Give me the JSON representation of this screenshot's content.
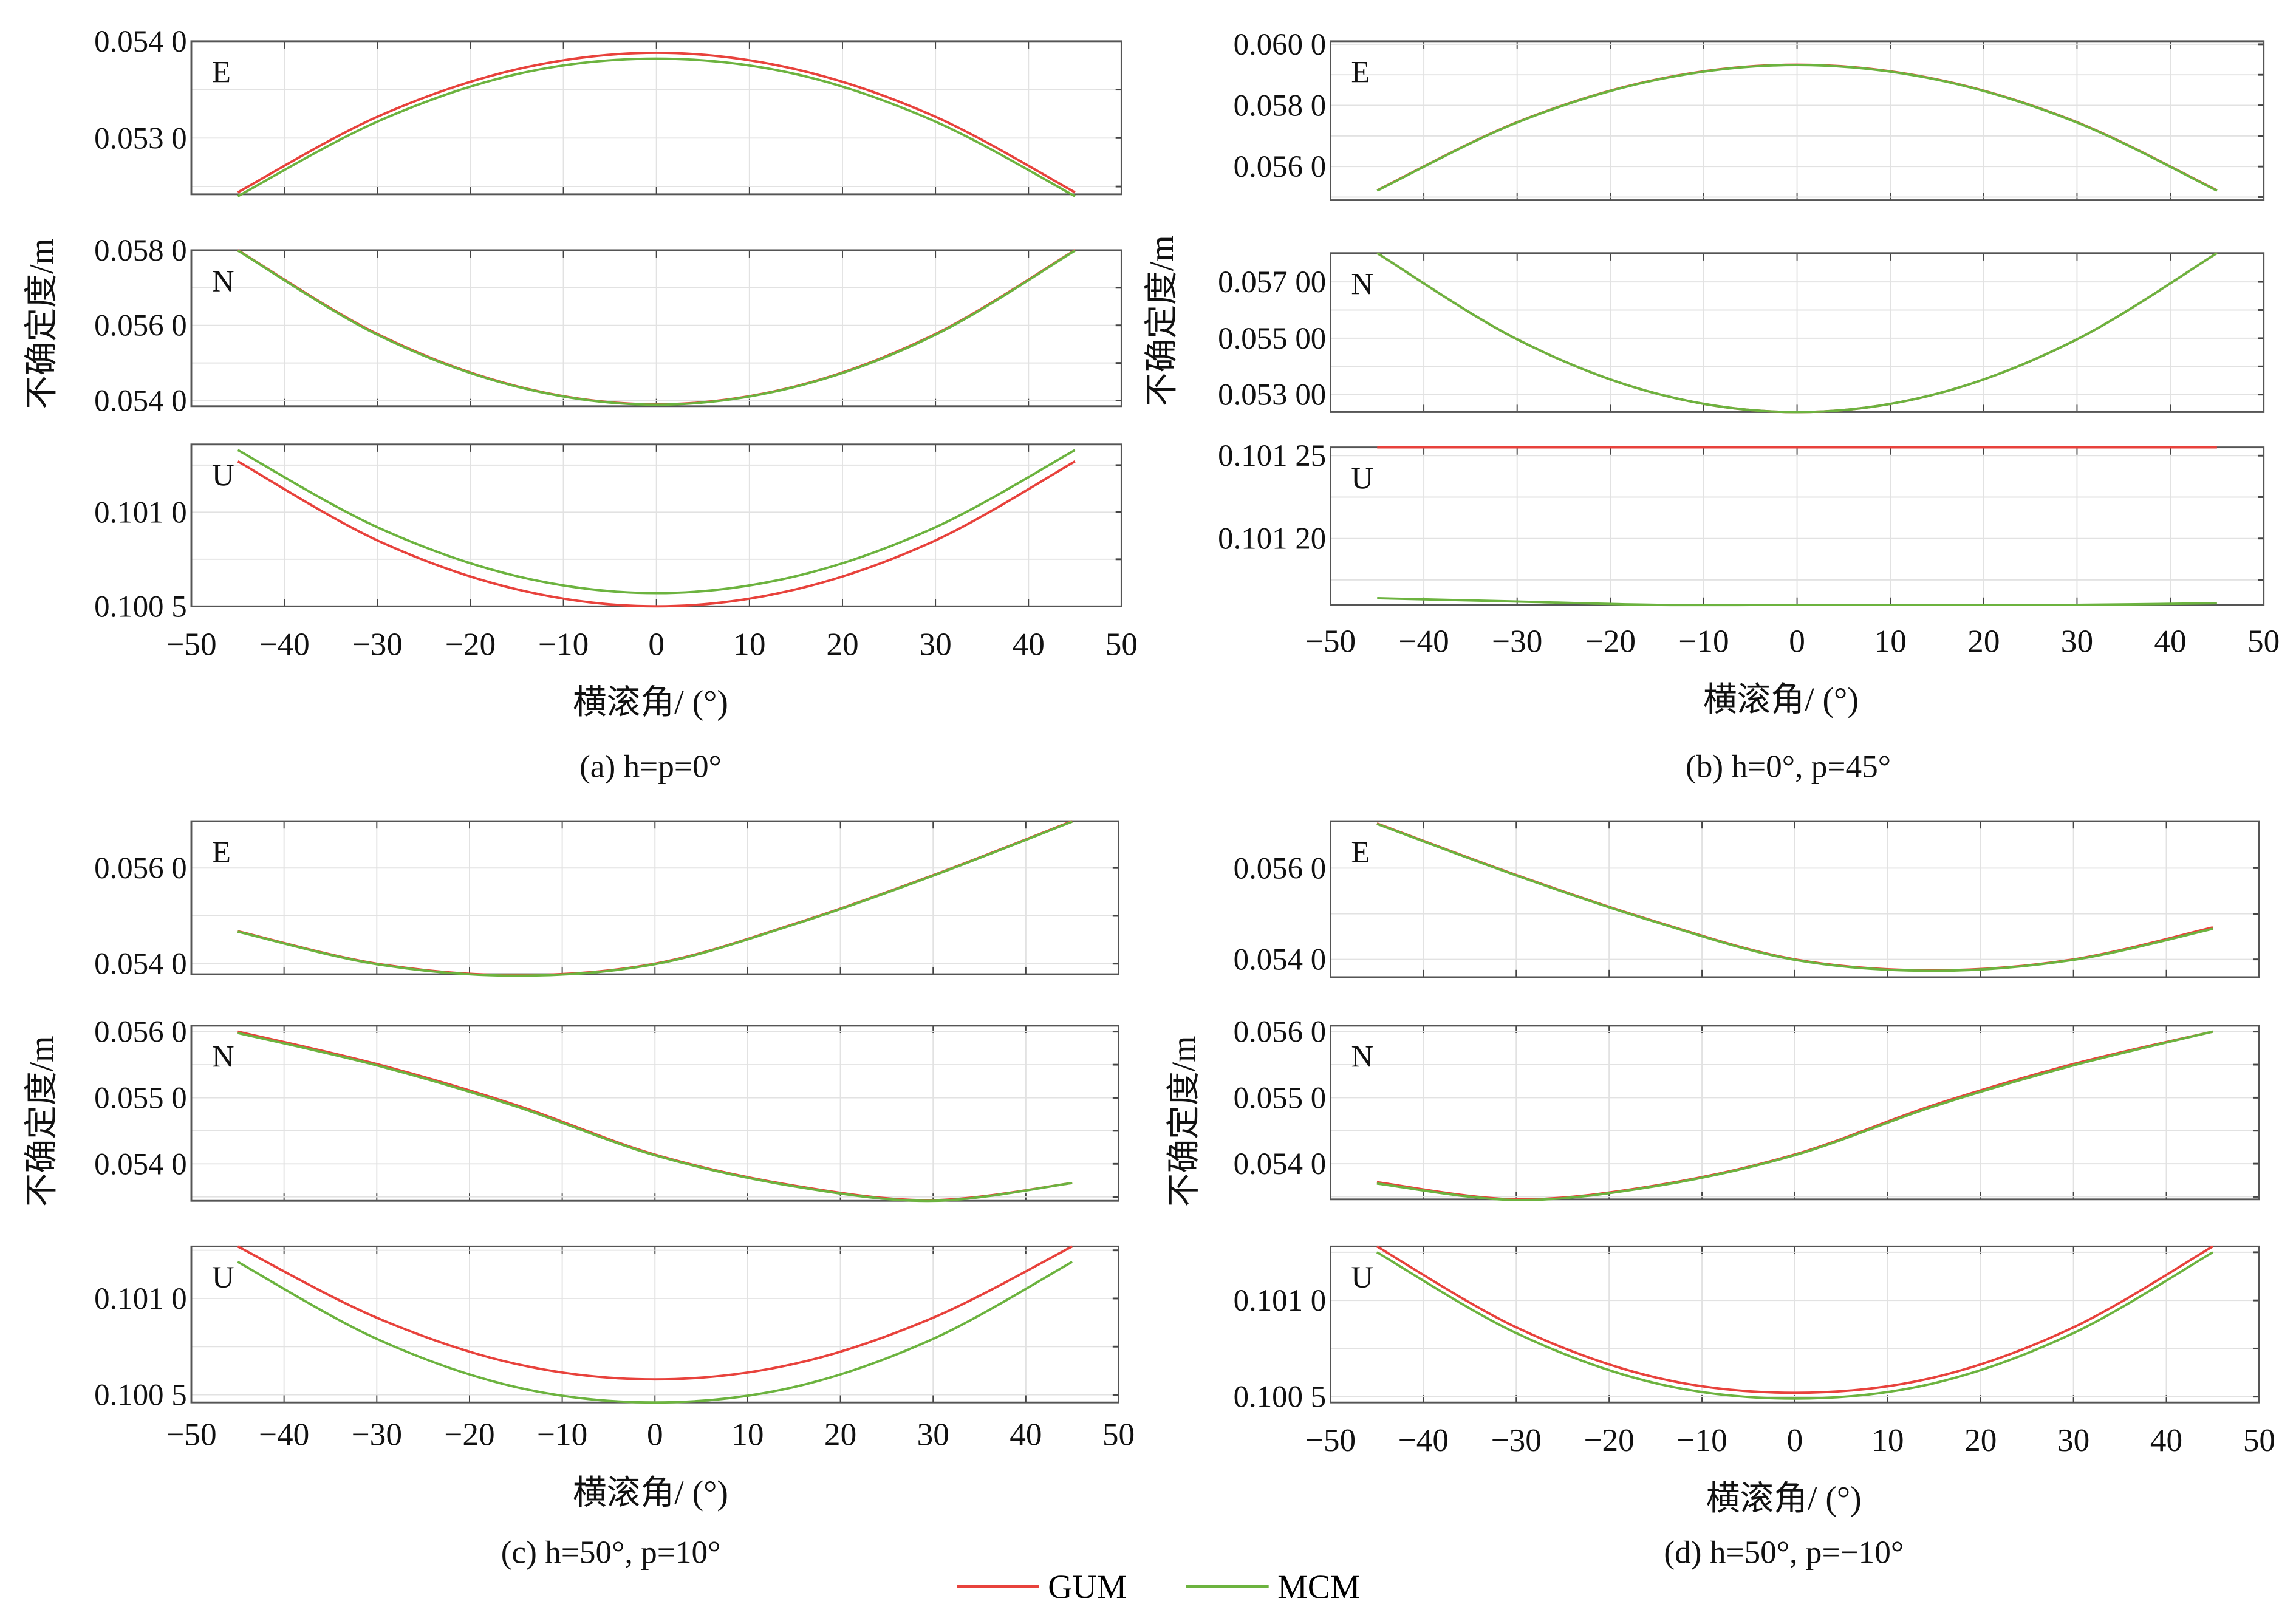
{
  "legend": [
    {
      "name": "GUM",
      "color": "#e8423c"
    },
    {
      "name": "MCM",
      "color": "#6cb33f"
    }
  ],
  "chart_data": [
    {
      "type": "line",
      "caption": "(a) h=p=0°",
      "xlabel": "横滚角/ (°)",
      "ylabel": "不确定度/m",
      "xlim": [
        -50,
        50
      ],
      "xticks": [
        "−50",
        "−40",
        "−30",
        "−20",
        "−10",
        "0",
        "10",
        "20",
        "30",
        "40",
        "50"
      ],
      "x": [
        -45,
        -30,
        -15,
        0,
        15,
        30,
        45
      ],
      "subplots": [
        {
          "label": "E",
          "ylim": [
            0.05242,
            0.054
          ],
          "yticks": [
            {
              "v": 0.054,
              "t": "0.054 0"
            },
            {
              "v": 0.053,
              "t": "0.053 0"
            }
          ],
          "series": [
            {
              "name": "GUM",
              "values": [
                0.05244,
                0.05322,
                0.05371,
                0.05388,
                0.05371,
                0.05322,
                0.05244
              ]
            },
            {
              "name": "MCM",
              "values": [
                0.0524,
                0.05317,
                0.05366,
                0.05382,
                0.05366,
                0.05317,
                0.0524
              ]
            }
          ]
        },
        {
          "label": "N",
          "ylim": [
            0.05385,
            0.058
          ],
          "yticks": [
            {
              "v": 0.058,
              "t": "0.058 0"
            },
            {
              "v": 0.056,
              "t": "0.056 0"
            },
            {
              "v": 0.054,
              "t": "0.054 0"
            }
          ],
          "series": [
            {
              "name": "GUM",
              "values": [
                0.058,
                0.05577,
                0.05438,
                0.0539,
                0.05438,
                0.05577,
                0.058
              ]
            },
            {
              "name": "MCM",
              "values": [
                0.05799,
                0.05575,
                0.05437,
                0.05389,
                0.05437,
                0.05575,
                0.05799
              ]
            }
          ]
        },
        {
          "label": "U",
          "ylim": [
            0.1005,
            0.10136
          ],
          "yticks": [
            {
              "v": 0.101,
              "t": "0.101 0"
            },
            {
              "v": 0.1005,
              "t": "0.100 5"
            }
          ],
          "series": [
            {
              "name": "GUM",
              "values": [
                0.10127,
                0.10085,
                0.10059,
                0.1005,
                0.10059,
                0.10085,
                0.10127
              ]
            },
            {
              "name": "MCM",
              "values": [
                0.10133,
                0.10092,
                0.10066,
                0.10057,
                0.10066,
                0.10092,
                0.10133
              ]
            }
          ]
        }
      ]
    },
    {
      "type": "line",
      "caption": "(b) h=0°, p=45°",
      "xlabel": "横滚角/ (°)",
      "ylabel": "不确定度/m",
      "xlim": [
        -50,
        50
      ],
      "xticks": [
        "−50",
        "−40",
        "−30",
        "−20",
        "−10",
        "0",
        "10",
        "20",
        "30",
        "40",
        "50"
      ],
      "x": [
        -45,
        -30,
        -15,
        0,
        15,
        30,
        45
      ],
      "subplots": [
        {
          "label": "E",
          "ylim": [
            0.0549,
            0.0601
          ],
          "yticks": [
            {
              "v": 0.06,
              "t": "0.060 0"
            },
            {
              "v": 0.058,
              "t": "0.058 0"
            },
            {
              "v": 0.056,
              "t": "0.056 0"
            }
          ],
          "series": [
            {
              "name": "GUM",
              "values": [
                0.05522,
                0.05745,
                0.05885,
                0.05933,
                0.05885,
                0.05745,
                0.05522
              ]
            },
            {
              "name": "MCM",
              "values": [
                0.05521,
                0.05744,
                0.05884,
                0.05932,
                0.05884,
                0.05744,
                0.05521
              ]
            }
          ]
        },
        {
          "label": "N",
          "ylim": [
            0.05238,
            0.05802
          ],
          "yticks": [
            {
              "v": 0.057,
              "t": "0.057 00"
            },
            {
              "v": 0.055,
              "t": "0.055 00"
            },
            {
              "v": 0.053,
              "t": "0.053 00"
            }
          ],
          "series": [
            {
              "name": "GUM",
              "values": [
                0.05802,
                0.05496,
                0.05303,
                0.05238,
                0.05303,
                0.05496,
                0.05802
              ]
            },
            {
              "name": "MCM",
              "values": [
                0.05802,
                0.05496,
                0.05303,
                0.05238,
                0.05303,
                0.05496,
                0.05802
              ]
            }
          ]
        },
        {
          "label": "U",
          "ylim": [
            0.10116,
            0.101255
          ],
          "yticks": [
            {
              "v": 0.10125,
              "t": "0.101 25"
            },
            {
              "v": 0.1012,
              "t": "0.101 20"
            }
          ],
          "series": [
            {
              "name": "GUM",
              "values": [
                0.101255,
                0.101255,
                0.101255,
                0.101255,
                0.101255,
                0.101255,
                0.101255
              ]
            },
            {
              "name": "MCM",
              "values": [
                0.101164,
                0.101162,
                0.10116,
                0.10116,
                0.10116,
                0.10116,
                0.101161
              ]
            }
          ]
        }
      ]
    },
    {
      "type": "line",
      "caption": "(c) h=50°, p=10°",
      "xlabel": "横滚角/ (°)",
      "ylabel": "不确定度/m",
      "xlim": [
        -50,
        50
      ],
      "xticks": [
        "−50",
        "−40",
        "−30",
        "−20",
        "−10",
        "0",
        "10",
        "20",
        "30",
        "40",
        "50"
      ],
      "x": [
        -45,
        -30,
        -15,
        0,
        15,
        30,
        45
      ],
      "subplots": [
        {
          "label": "E",
          "ylim": [
            0.05378,
            0.05698
          ],
          "yticks": [
            {
              "v": 0.056,
              "t": "0.056 0"
            },
            {
              "v": 0.054,
              "t": "0.054 0"
            }
          ],
          "series": [
            {
              "name": "GUM",
              "values": [
                0.05468,
                0.054,
                0.05376,
                0.054,
                0.05483,
                0.05585,
                0.05698
              ]
            },
            {
              "name": "MCM",
              "values": [
                0.05467,
                0.05399,
                0.05375,
                0.05399,
                0.05482,
                0.05584,
                0.05697
              ]
            }
          ]
        },
        {
          "label": "N",
          "ylim": [
            0.05344,
            0.05609
          ],
          "yticks": [
            {
              "v": 0.056,
              "t": "0.056 0"
            },
            {
              "v": 0.055,
              "t": "0.055 0"
            },
            {
              "v": 0.054,
              "t": "0.054 0"
            }
          ],
          "series": [
            {
              "name": "GUM",
              "values": [
                0.056,
                0.05551,
                0.05489,
                0.05414,
                0.05367,
                0.05345,
                0.05371
              ]
            },
            {
              "name": "MCM",
              "values": [
                0.05598,
                0.05549,
                0.05487,
                0.05413,
                0.05366,
                0.05344,
                0.05371
              ]
            }
          ]
        },
        {
          "label": "U",
          "ylim": [
            0.10046,
            0.10127
          ],
          "yticks": [
            {
              "v": 0.101,
              "t": "0.101 0"
            },
            {
              "v": 0.1005,
              "t": "0.100 5"
            }
          ],
          "series": [
            {
              "name": "GUM",
              "values": [
                0.10127,
                0.1009,
                0.10066,
                0.10058,
                0.10066,
                0.1009,
                0.10127
              ]
            },
            {
              "name": "MCM",
              "values": [
                0.10119,
                0.10079,
                0.10054,
                0.10046,
                0.10054,
                0.10079,
                0.10119
              ]
            }
          ]
        }
      ]
    },
    {
      "type": "line",
      "caption": "(d) h=50°, p=−10°",
      "xlabel": "横滚角/ (°)",
      "ylabel": "不确定度/m",
      "xlim": [
        -50,
        50
      ],
      "xticks": [
        "−50",
        "−40",
        "−30",
        "−20",
        "−10",
        "0",
        "10",
        "20",
        "30",
        "40",
        "50"
      ],
      "x": [
        -45,
        -30,
        -15,
        0,
        15,
        30,
        45
      ],
      "subplots": [
        {
          "label": "E",
          "ylim": [
            0.05361,
            0.05703
          ],
          "yticks": [
            {
              "v": 0.056,
              "t": "0.056 0"
            },
            {
              "v": 0.054,
              "t": "0.054 0"
            }
          ],
          "series": [
            {
              "name": "GUM",
              "values": [
                0.05698,
                0.05585,
                0.05483,
                0.054,
                0.05376,
                0.054,
                0.0547
              ]
            },
            {
              "name": "MCM",
              "values": [
                0.05697,
                0.05584,
                0.05482,
                0.05399,
                0.05375,
                0.05399,
                0.05467
              ]
            }
          ]
        },
        {
          "label": "N",
          "ylim": [
            0.05346,
            0.05609
          ],
          "yticks": [
            {
              "v": 0.056,
              "t": "0.056 0"
            },
            {
              "v": 0.055,
              "t": "0.055 0"
            },
            {
              "v": 0.054,
              "t": "0.054 0"
            }
          ],
          "series": [
            {
              "name": "GUM",
              "values": [
                0.05372,
                0.05346,
                0.05367,
                0.05414,
                0.05489,
                0.05551,
                0.056
              ]
            },
            {
              "name": "MCM",
              "values": [
                0.0537,
                0.05345,
                0.05366,
                0.05413,
                0.05487,
                0.05549,
                0.056
              ]
            }
          ]
        },
        {
          "label": "U",
          "ylim": [
            0.10047,
            0.10128
          ],
          "yticks": [
            {
              "v": 0.101,
              "t": "0.101 0"
            },
            {
              "v": 0.1005,
              "t": "0.100 5"
            }
          ],
          "series": [
            {
              "name": "GUM",
              "values": [
                0.10128,
                0.10086,
                0.1006,
                0.10052,
                0.1006,
                0.10086,
                0.10128
              ]
            },
            {
              "name": "MCM",
              "values": [
                0.10125,
                0.10083,
                0.10057,
                0.10049,
                0.10057,
                0.10083,
                0.10125
              ]
            }
          ]
        }
      ]
    }
  ]
}
